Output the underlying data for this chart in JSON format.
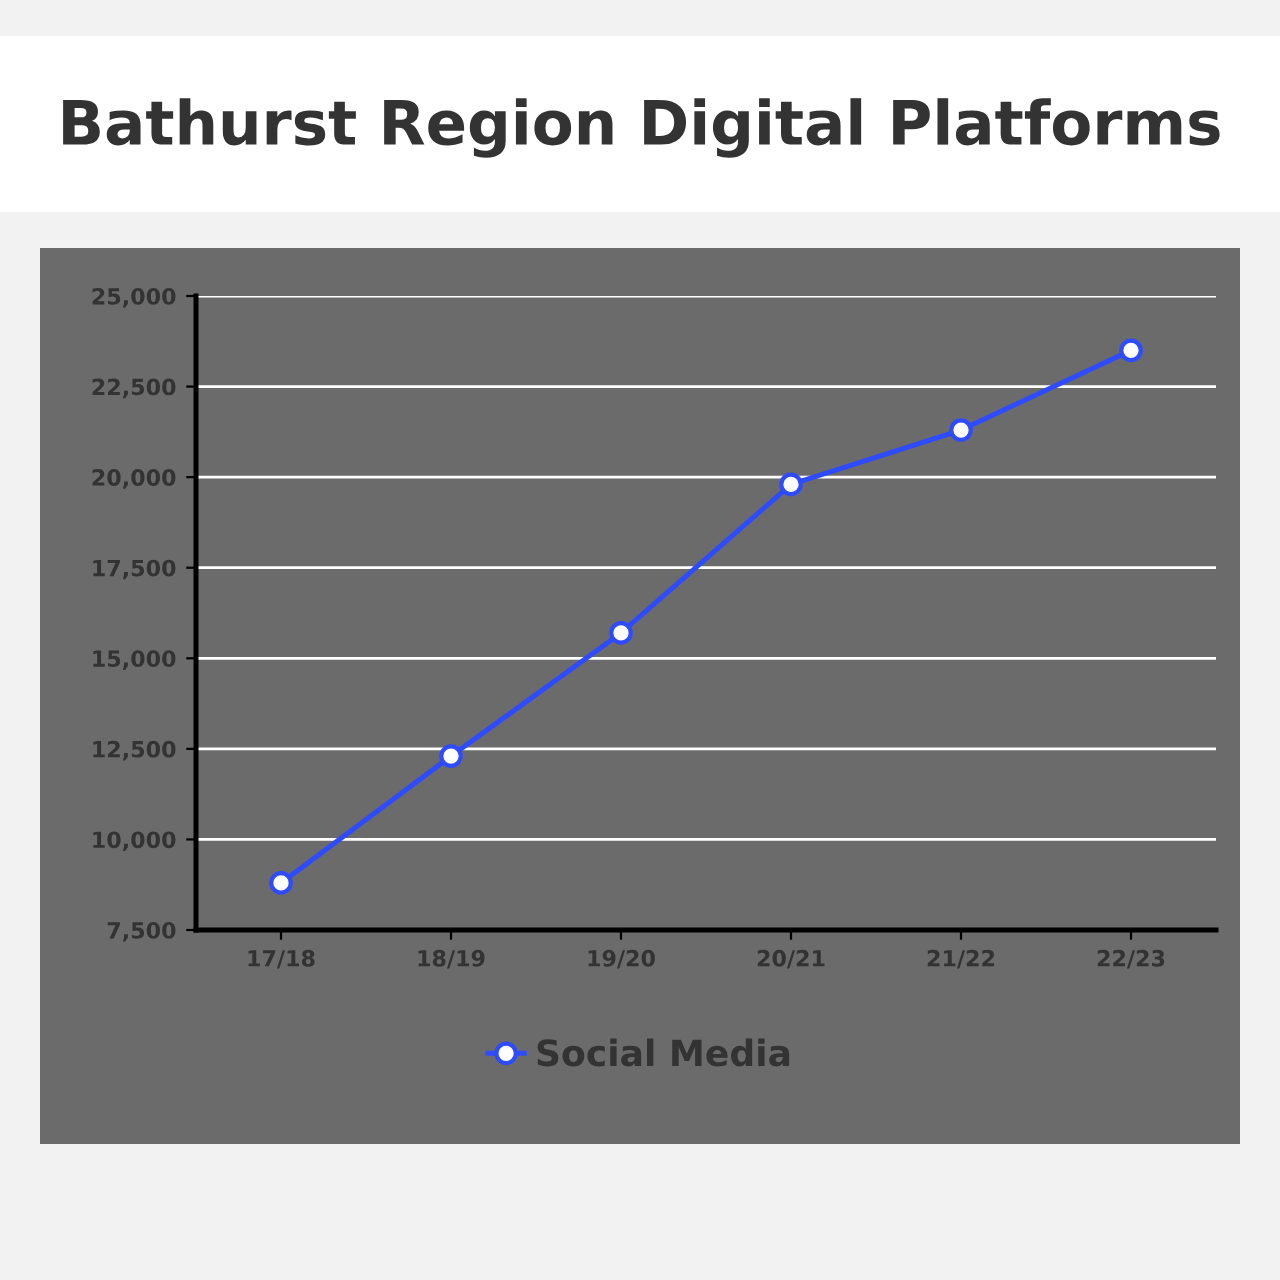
{
  "chart_data": {
    "type": "line",
    "title": "Bathurst Region Digital Platforms",
    "categories": [
      "17/18",
      "18/19",
      "19/20",
      "20/21",
      "21/22",
      "22/23"
    ],
    "series": [
      {
        "name": "Social Media",
        "color": "#2e4bff",
        "values": [
          8800,
          12300,
          15700,
          19800,
          21300,
          23500
        ]
      }
    ],
    "ylim": [
      7500,
      25000
    ],
    "yticks": [
      {
        "value": 7500,
        "label": "7,500"
      },
      {
        "value": 10000,
        "label": "10,000"
      },
      {
        "value": 12500,
        "label": "12,500"
      },
      {
        "value": 15000,
        "label": "15,000"
      },
      {
        "value": 17500,
        "label": "17,500"
      },
      {
        "value": 20000,
        "label": "20,000"
      },
      {
        "value": 22500,
        "label": "22,500"
      },
      {
        "value": 25000,
        "label": "25,000"
      }
    ],
    "grid": "y",
    "legend": "bottom",
    "marker": "circle",
    "line_style": "solid"
  }
}
